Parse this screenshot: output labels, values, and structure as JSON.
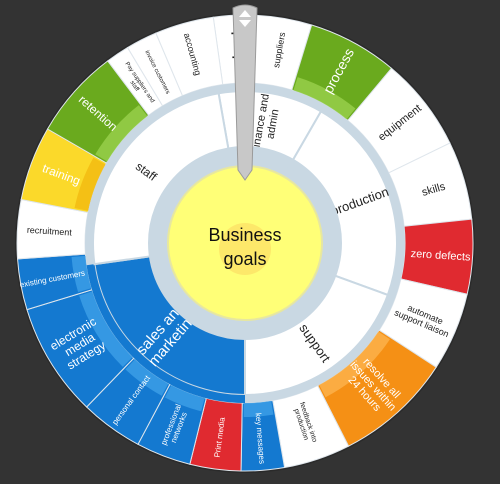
{
  "center": {
    "lines": [
      "Business",
      "goals"
    ]
  },
  "colors": {
    "background": "#333333",
    "white": "#ffffff",
    "blue": "#1479d0",
    "blue_light": "#3b9ee6",
    "green": "#6aaa1e",
    "green_light": "#97cf4a",
    "yellow": "#fbd92a",
    "yellow_dark": "#f2bb12",
    "red": "#e02a30",
    "orange": "#f59015",
    "orange_light": "#fbb14a",
    "ring_gray": "#c9d8e3",
    "center_yellow": "#ffff77",
    "center_glow": "#fde86a"
  },
  "inner_ring": [
    {
      "label": "finance and admin"
    },
    {
      "label": "production"
    },
    {
      "label": "support"
    },
    {
      "label": "sales and marketing"
    },
    {
      "label": "staff"
    }
  ],
  "outer_ring": [
    {
      "label": "legal",
      "fill": "white",
      "bold": true
    },
    {
      "label": "suppliers",
      "fill": "white"
    },
    {
      "label": "process",
      "fill": "green"
    },
    {
      "label": "equipment",
      "fill": "white"
    },
    {
      "label": "skills",
      "fill": "white"
    },
    {
      "label": "zero defects",
      "fill": "red"
    },
    {
      "label": "automate support liaison",
      "fill": "white"
    },
    {
      "label": "resolve all issues within 24 hours",
      "fill": "orange"
    },
    {
      "label": "feedback into production",
      "fill": "white"
    },
    {
      "label": "key messages",
      "fill": "blue"
    },
    {
      "label": "Print media",
      "fill": "red"
    },
    {
      "label": "professional networks",
      "fill": "blue"
    },
    {
      "label": "personal contact",
      "fill": "blue"
    },
    {
      "label": "electronic media strategy",
      "fill": "blue"
    },
    {
      "label": "existing customers",
      "fill": "blue"
    },
    {
      "label": "recruitment",
      "fill": "white"
    },
    {
      "label": "training",
      "fill": "yellow"
    },
    {
      "label": "retention",
      "fill": "green"
    },
    {
      "label": "Pay suppliers and staff",
      "fill": "white"
    },
    {
      "label": "invoice customers",
      "fill": "white"
    },
    {
      "label": "accounting",
      "fill": "white"
    }
  ],
  "handle": {
    "icon": "up-down-arrows-icon"
  }
}
